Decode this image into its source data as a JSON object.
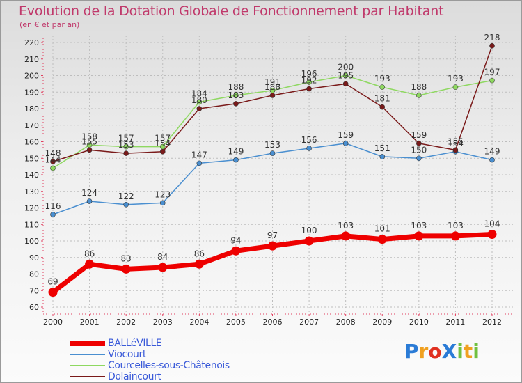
{
  "chart_data": {
    "type": "line",
    "title": "Evolution de la Dotation Globale de Fonctionnement par Habitant",
    "subtitle": "(en € et par an)",
    "xlabel": "",
    "ylabel": "",
    "categories": [
      "2000",
      "2001",
      "2002",
      "2003",
      "2004",
      "2005",
      "2006",
      "2007",
      "2008",
      "2009",
      "2010",
      "2011",
      "2012"
    ],
    "ylim": [
      60,
      220
    ],
    "yticks": [
      60,
      70,
      80,
      90,
      100,
      110,
      120,
      130,
      140,
      150,
      160,
      170,
      180,
      190,
      200,
      210,
      220
    ],
    "grid": true,
    "legend_position": "bottom-left",
    "series": [
      {
        "name": "BALLéVILLE",
        "color": "#ee0000",
        "weight": "heavy",
        "values": [
          69,
          86,
          83,
          84,
          86,
          94,
          97,
          100,
          103,
          101,
          103,
          103,
          104
        ]
      },
      {
        "name": "Viocourt",
        "color": "#4a8fd0",
        "weight": "thin",
        "values": [
          116,
          124,
          122,
          123,
          147,
          149,
          153,
          156,
          159,
          151,
          150,
          154,
          149
        ]
      },
      {
        "name": "Courcelles-sous-Châtenois",
        "color": "#8ed860",
        "weight": "thin",
        "values": [
          144,
          158,
          157,
          157,
          184,
          188,
          191,
          196,
          200,
          193,
          188,
          193,
          197
        ]
      },
      {
        "name": "Dolaincourt",
        "color": "#7a1a1a",
        "weight": "thin",
        "values": [
          148,
          155,
          153,
          154,
          180,
          183,
          188,
          192,
          195,
          181,
          159,
          155,
          218
        ]
      }
    ],
    "data_labels": [
      {
        "series": 0,
        "labels": [
          "69",
          "86",
          "83",
          "84",
          "86",
          "94",
          "97",
          "100",
          "103",
          "101",
          "103",
          "103",
          "104"
        ]
      },
      {
        "series": 1,
        "labels": [
          "116",
          "124",
          "122",
          "123",
          "147",
          "149",
          "153",
          "156",
          "159",
          "151",
          "150",
          "154",
          "149"
        ]
      },
      {
        "series": 2,
        "labels": [
          "144",
          "158",
          "157",
          "157",
          "184",
          "188",
          "191",
          "196",
          "200",
          "193",
          "188",
          "193",
          "197"
        ]
      },
      {
        "series": 3,
        "labels": [
          "148",
          "155",
          "153",
          "154",
          "180",
          "183",
          "188",
          "192",
          "195",
          "181",
          "159",
          "155",
          "218"
        ]
      }
    ]
  },
  "branding": {
    "logo_text": "ProXiti",
    "logo_colors": [
      "#2a7bd6",
      "#f0a020",
      "#e03020",
      "#2a7bd6",
      "#70c040",
      "#f0a020",
      "#70c040"
    ]
  }
}
